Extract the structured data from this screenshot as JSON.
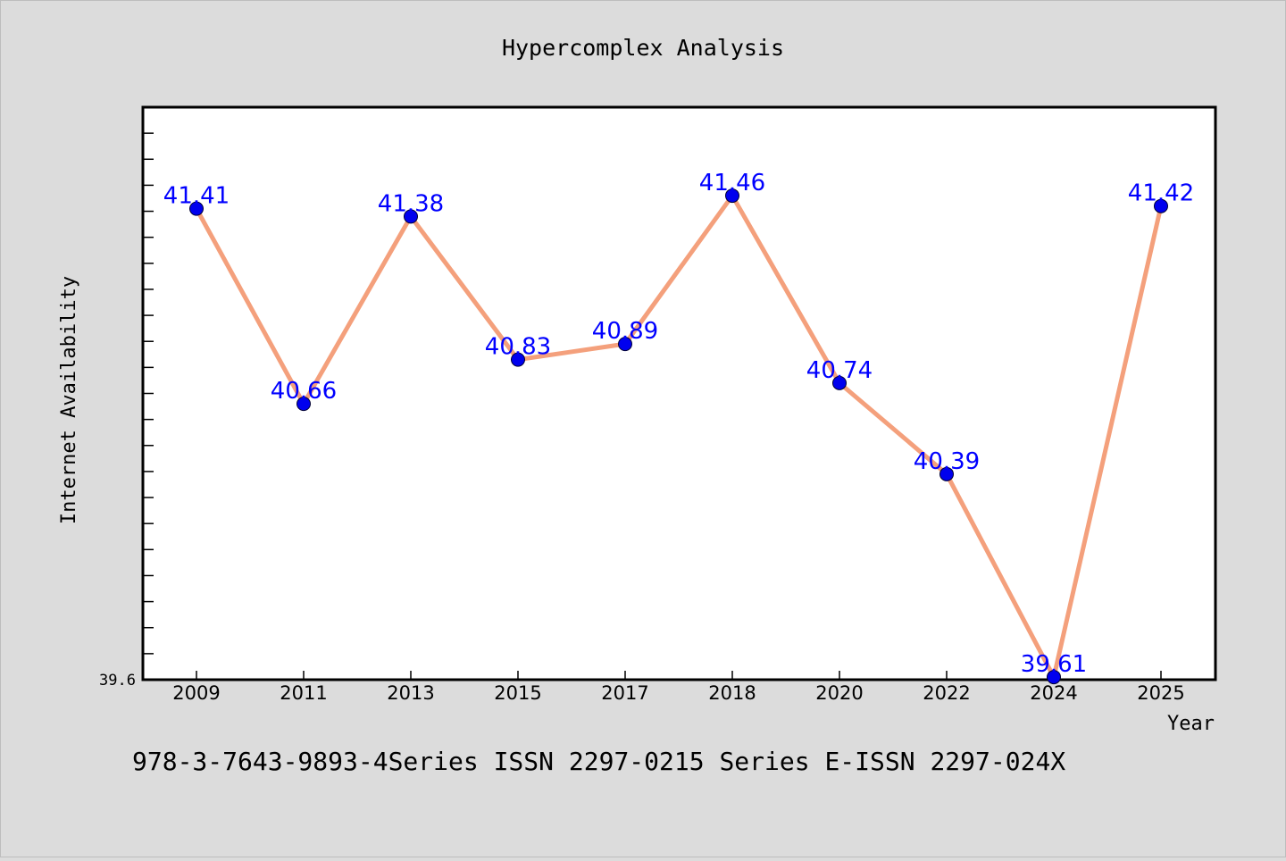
{
  "chart_data": {
    "type": "line",
    "title": "Hypercomplex Analysis",
    "xlabel": "Year",
    "ylabel": "Internet Availability",
    "categories": [
      "2009",
      "2011",
      "2013",
      "2015",
      "2017",
      "2018",
      "2020",
      "2022",
      "2024",
      "2025"
    ],
    "series": [
      {
        "values": [
          41.41,
          40.66,
          41.38,
          40.83,
          40.89,
          41.46,
          40.74,
          40.39,
          39.61,
          41.42
        ],
        "data_labels": [
          "41.41",
          "40.66",
          "41.38",
          "40.83",
          "40.89",
          "41.46",
          "40.74",
          "40.39",
          "39.61",
          "41.42"
        ]
      }
    ],
    "ylim": [
      39.6,
      41.8
    ],
    "y_tick_labels": [
      "39.6"
    ],
    "grid": false,
    "line_color": "#f4a07c",
    "marker_color": "#0000ee",
    "label_color": "#0000ff",
    "plot_background": "#ffffff",
    "figure_background": "#dcdcdc"
  },
  "footer": {
    "text": "978-3-7643-9893-4Series ISSN 2297-0215 Series E-ISSN 2297-024X"
  }
}
